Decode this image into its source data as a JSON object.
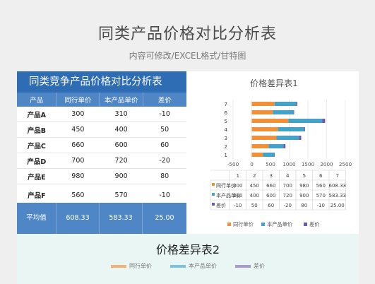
{
  "page": {
    "title": "同类产品价格对比分析表",
    "subtitle": "内容可修改/EXCEL格式/甘特图"
  },
  "table": {
    "title": "同类竞争产品价格对比分析表",
    "headers": [
      "产品",
      "同行单价",
      "本产品单价",
      "差价"
    ],
    "rows": [
      {
        "product": "产品A",
        "peer": "300",
        "own": "310",
        "diff": "-10"
      },
      {
        "product": "产品B",
        "peer": "450",
        "own": "400",
        "diff": "50"
      },
      {
        "product": "产品C",
        "peer": "660",
        "own": "600",
        "diff": "60"
      },
      {
        "product": "产品D",
        "peer": "700",
        "own": "720",
        "diff": "-20"
      },
      {
        "product": "产品E",
        "peer": "980",
        "own": "900",
        "diff": "80"
      },
      {
        "product": "产品F",
        "peer": "560",
        "own": "570",
        "diff": "-10"
      }
    ],
    "average": {
      "label": "平均值",
      "peer": "608.33",
      "own": "583.33",
      "diff": "25.00"
    }
  },
  "chart_data": [
    {
      "type": "bar",
      "orientation": "horizontal",
      "stacked": true,
      "title": "价格差异表1",
      "categories": [
        "1",
        "2",
        "3",
        "4",
        "5",
        "6",
        "7"
      ],
      "series": [
        {
          "name": "同行单价",
          "color": "#f0913a",
          "values": [
            300,
            450,
            660,
            700,
            980,
            560,
            608.33
          ]
        },
        {
          "name": "本产品单价",
          "color": "#44a1c8",
          "values": [
            310,
            400,
            600,
            720,
            900,
            570,
            583.33
          ]
        },
        {
          "name": "差价",
          "color": "#6c5aa6",
          "values": [
            -10,
            50,
            60,
            -20,
            80,
            -10,
            25.0
          ]
        }
      ],
      "x_ticks": [
        "-500",
        "0",
        "500",
        "1000",
        "1500",
        "2000",
        "2500"
      ],
      "xlim": [
        -500,
        2500
      ],
      "table_values": [
        [
          "300",
          "450",
          "660",
          "700",
          "980",
          "560",
          "608.33"
        ],
        [
          "310",
          "400",
          "600",
          "720",
          "900",
          "570",
          "583.33"
        ],
        [
          "-10",
          "50",
          "60",
          "-20",
          "80",
          "-10",
          "25.00"
        ]
      ],
      "legend": "bottom"
    },
    {
      "type": "bar",
      "title": "价格差异表2",
      "series": [
        {
          "name": "同行单价",
          "color": "#f5b07a"
        },
        {
          "name": "本产品单价",
          "color": "#7dc3db"
        },
        {
          "name": "差价",
          "color": "#a79ccd"
        }
      ],
      "legend": "top"
    }
  ]
}
